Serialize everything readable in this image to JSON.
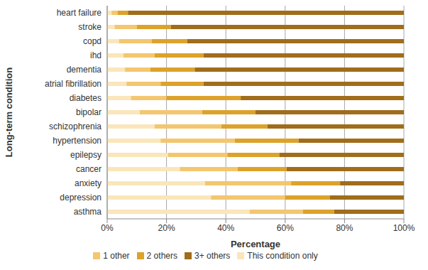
{
  "chart_data": {
    "type": "bar",
    "orientation": "horizontal",
    "stacked": true,
    "grid": true,
    "legend": "bottom",
    "x_label": "Percentage",
    "y_label": "Long-term condition",
    "categories": [
      "heart failure",
      "stroke",
      "copd",
      "ihd",
      "dementia",
      "atrial fibrillation",
      "diabetes",
      "bipolar",
      "schizophrenia",
      "hypertension",
      "epilepsy",
      "cancer",
      "anxiety",
      "depression",
      "asthma"
    ],
    "series": [
      {
        "name": "This condition only",
        "color": "#fae6ba",
        "values": [
          1.5,
          2.5,
          4,
          5.5,
          6,
          6.5,
          8,
          11,
          16,
          18,
          20.5,
          24.5,
          33,
          35,
          48
        ]
      },
      {
        "name": "1 other",
        "color": "#f3c66f",
        "values": [
          2,
          7.5,
          11,
          10.5,
          8.5,
          11.5,
          12,
          21,
          22.5,
          25,
          20,
          19.5,
          29,
          25,
          18
        ]
      },
      {
        "name": "2 others",
        "color": "#dda22a",
        "values": [
          3.5,
          11.5,
          12,
          16.5,
          15,
          14.5,
          25,
          18,
          15.5,
          21.5,
          17.5,
          16.5,
          16.5,
          15,
          10.5
        ]
      },
      {
        "name": "3+ others",
        "color": "#a06d1b",
        "values": [
          93,
          78.5,
          73,
          67.5,
          70.5,
          67.5,
          55,
          50,
          46,
          35.5,
          42,
          39.5,
          21.5,
          25,
          23.5
        ]
      }
    ],
    "xlim": [
      0,
      100
    ],
    "xticks": [
      {
        "value": 0,
        "label": "0%"
      },
      {
        "value": 20,
        "label": "20%"
      },
      {
        "value": 40,
        "label": "40%"
      },
      {
        "value": 60,
        "label": "60%"
      },
      {
        "value": 80,
        "label": "80%"
      },
      {
        "value": 100,
        "label": "100%"
      }
    ]
  }
}
